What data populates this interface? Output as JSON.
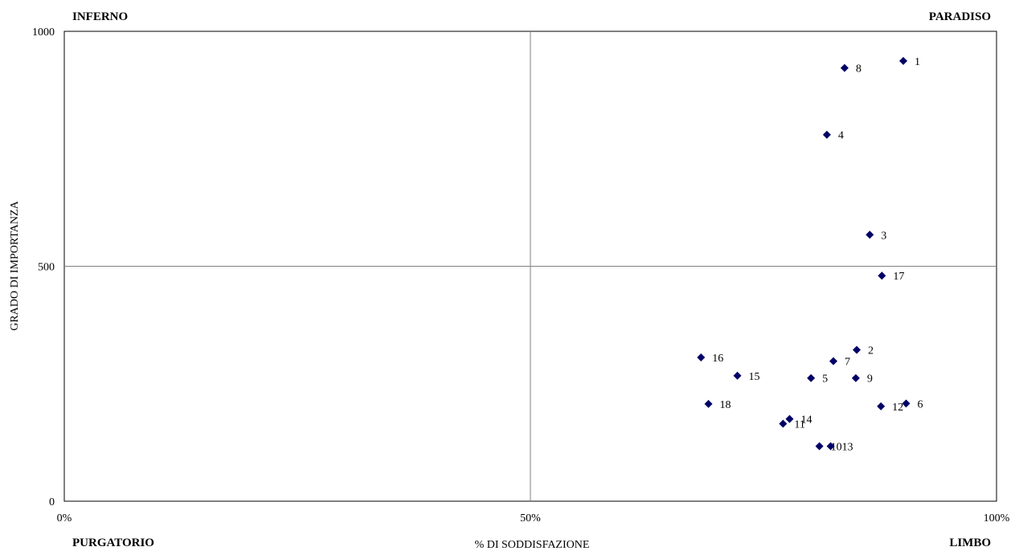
{
  "chart_data": {
    "type": "scatter",
    "xlabel": "% DI SODDISFAZIONE",
    "ylabel": "GRADO DI IMPORTANZA",
    "xlim": [
      0,
      100
    ],
    "ylim": [
      0,
      1000
    ],
    "x_ticks": [
      0,
      50,
      100
    ],
    "x_tick_labels": [
      "0%",
      "50%",
      "100%"
    ],
    "y_ticks": [
      0,
      500,
      1000
    ],
    "y_tick_labels": [
      "0",
      "500",
      "1000"
    ],
    "quadrant_lines": {
      "x": 50,
      "y": 500
    },
    "grid": false,
    "legend": "none",
    "quadrant_labels": {
      "top_left": "INFERNO",
      "top_right": "PARADISO",
      "bottom_left": "PURGATORIO",
      "bottom_right": "LIMBO"
    },
    "marker_color": "#000066",
    "points": [
      {
        "label": "1",
        "x": 90,
        "y": 937
      },
      {
        "label": "2",
        "x": 85,
        "y": 322
      },
      {
        "label": "3",
        "x": 86.4,
        "y": 567
      },
      {
        "label": "4",
        "x": 81.8,
        "y": 780
      },
      {
        "label": "5",
        "x": 80.1,
        "y": 262
      },
      {
        "label": "6",
        "x": 90.3,
        "y": 208
      },
      {
        "label": "7",
        "x": 82.5,
        "y": 298
      },
      {
        "label": "8",
        "x": 83.7,
        "y": 922
      },
      {
        "label": "9",
        "x": 84.9,
        "y": 262
      },
      {
        "label": "10",
        "x": 81,
        "y": 117
      },
      {
        "label": "11",
        "x": 77.1,
        "y": 165
      },
      {
        "label": "12",
        "x": 87.6,
        "y": 202
      },
      {
        "label": "13",
        "x": 82.2,
        "y": 117
      },
      {
        "label": "14",
        "x": 77.8,
        "y": 175
      },
      {
        "label": "15",
        "x": 72.2,
        "y": 267
      },
      {
        "label": "16",
        "x": 68.3,
        "y": 306
      },
      {
        "label": "17",
        "x": 87.7,
        "y": 480
      },
      {
        "label": "18",
        "x": 69.1,
        "y": 207
      }
    ]
  }
}
